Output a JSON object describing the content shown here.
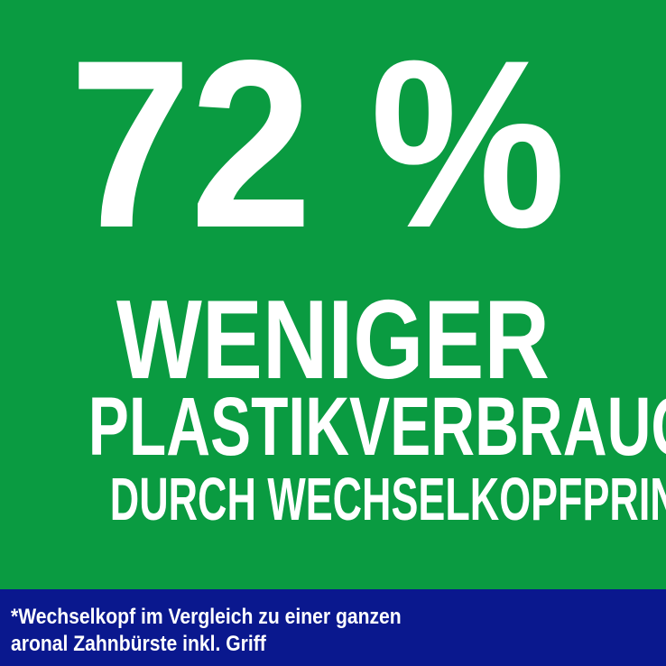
{
  "banner": {
    "headline": "72 %",
    "line1": "WENIGER",
    "line2": "PLASTIKVERBRAUCH",
    "line3": "DURCH WECHSELKOPFPRINZIP*"
  },
  "footnote": {
    "line1": "*Wechselkopf im Vergleich zu einer ganzen",
    "line2": "aronal Zahnbürste inkl. Griff"
  },
  "colors": {
    "background_green": "#0a9b41",
    "footnote_blue": "#0a188e",
    "text_white": "#ffffff"
  }
}
